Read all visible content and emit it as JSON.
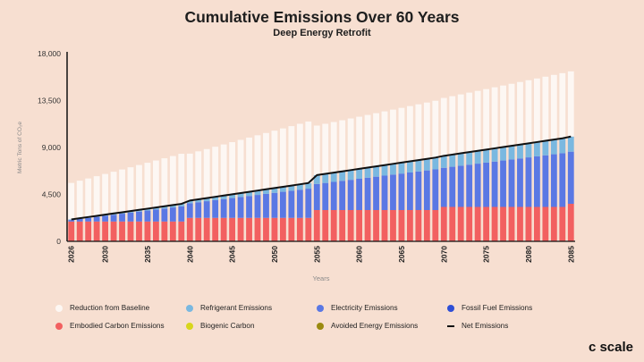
{
  "header": {
    "title": "Cumulative Emissions Over 60 Years",
    "subtitle": "Deep Energy Retrofit"
  },
  "brand": {
    "logo_text": "c scale"
  },
  "chart_data": {
    "type": "bar",
    "stacked": true,
    "title": "Cumulative Emissions Over 60 Years",
    "subtitle": "Deep Energy Retrofit",
    "xlabel": "Years",
    "ylabel": "Metric Tons of CO₂e",
    "ylim": [
      0,
      18000
    ],
    "yticks": [
      0,
      4500,
      9000,
      13500,
      18000
    ],
    "ytick_labels": [
      "0",
      "4,500",
      "9,000",
      "13,500",
      "18,000"
    ],
    "xtick_labels": [
      "2026",
      "2030",
      "2035",
      "2040",
      "2045",
      "2050",
      "2055",
      "2060",
      "2065",
      "2070",
      "2075",
      "2080",
      "2085"
    ],
    "categories": [
      2026,
      2027,
      2028,
      2029,
      2030,
      2031,
      2032,
      2033,
      2034,
      2035,
      2036,
      2037,
      2038,
      2039,
      2040,
      2041,
      2042,
      2043,
      2044,
      2045,
      2046,
      2047,
      2048,
      2049,
      2050,
      2051,
      2052,
      2053,
      2054,
      2055,
      2056,
      2057,
      2058,
      2059,
      2060,
      2061,
      2062,
      2063,
      2064,
      2065,
      2066,
      2067,
      2068,
      2069,
      2070,
      2071,
      2072,
      2073,
      2074,
      2075,
      2076,
      2077,
      2078,
      2079,
      2080,
      2081,
      2082,
      2083,
      2084,
      2085
    ],
    "series": [
      {
        "name": "Embodied Carbon Emissions",
        "color": "#f26060",
        "values": [
          1900,
          1900,
          1900,
          1900,
          1900,
          1900,
          1900,
          1900,
          1900,
          1900,
          1900,
          1900,
          1900,
          1900,
          2250,
          2250,
          2250,
          2250,
          2250,
          2250,
          2250,
          2250,
          2250,
          2250,
          2250,
          2250,
          2250,
          2250,
          2250,
          3000,
          3000,
          3000,
          3000,
          3000,
          3000,
          3000,
          3000,
          3000,
          3000,
          3000,
          3000,
          3000,
          3000,
          3000,
          3300,
          3300,
          3300,
          3300,
          3300,
          3300,
          3300,
          3300,
          3300,
          3300,
          3300,
          3300,
          3300,
          3300,
          3300,
          3600
        ]
      },
      {
        "name": "Fossil Fuel Emissions",
        "color": "#2f4fd6",
        "values": [
          0,
          0,
          0,
          0,
          0,
          0,
          0,
          0,
          0,
          0,
          0,
          0,
          0,
          0,
          0,
          0,
          0,
          0,
          0,
          0,
          0,
          0,
          0,
          0,
          0,
          0,
          0,
          0,
          0,
          0,
          0,
          0,
          0,
          0,
          0,
          0,
          0,
          0,
          0,
          0,
          0,
          0,
          0,
          0,
          0,
          0,
          0,
          0,
          0,
          0,
          0,
          0,
          0,
          0,
          0,
          0,
          0,
          0,
          0,
          0
        ]
      },
      {
        "name": "Electricity Emissions",
        "color": "#5a78e4",
        "values": [
          150,
          250,
          350,
          450,
          550,
          650,
          750,
          850,
          950,
          1050,
          1150,
          1250,
          1350,
          1450,
          1400,
          1500,
          1600,
          1700,
          1800,
          1900,
          2000,
          2100,
          2200,
          2300,
          2400,
          2500,
          2600,
          2700,
          2800,
          2500,
          2600,
          2700,
          2800,
          2900,
          3000,
          3100,
          3200,
          3300,
          3400,
          3500,
          3600,
          3700,
          3800,
          3900,
          3750,
          3850,
          3950,
          4050,
          4150,
          4250,
          4350,
          4450,
          4550,
          4650,
          4750,
          4850,
          4950,
          5050,
          5150,
          5000
        ]
      },
      {
        "name": "Refrigerant Emissions",
        "color": "#7ab8e0",
        "values": [
          50,
          65,
          80,
          95,
          110,
          125,
          140,
          155,
          170,
          185,
          200,
          215,
          230,
          245,
          260,
          280,
          300,
          320,
          340,
          360,
          380,
          400,
          420,
          440,
          460,
          480,
          500,
          520,
          540,
          850,
          870,
          890,
          910,
          930,
          950,
          970,
          990,
          1010,
          1030,
          1050,
          1070,
          1090,
          1110,
          1130,
          1150,
          1170,
          1190,
          1210,
          1230,
          1250,
          1270,
          1290,
          1310,
          1330,
          1350,
          1370,
          1390,
          1410,
          1430,
          1450
        ]
      },
      {
        "name": "Reduction from Baseline",
        "color": "#fdf7f3",
        "values": [
          3500,
          3600,
          3700,
          3800,
          3900,
          4000,
          4100,
          4200,
          4300,
          4400,
          4500,
          4600,
          4700,
          4800,
          4500,
          4600,
          4700,
          4800,
          4900,
          5000,
          5100,
          5200,
          5300,
          5400,
          5500,
          5600,
          5700,
          5800,
          5900,
          4750,
          4800,
          4850,
          4900,
          4950,
          5000,
          5050,
          5100,
          5150,
          5200,
          5250,
          5300,
          5350,
          5400,
          5450,
          5550,
          5600,
          5650,
          5700,
          5750,
          5800,
          5850,
          5900,
          5950,
          6000,
          6050,
          6100,
          6150,
          6200,
          6250,
          6250
        ]
      }
    ],
    "net_emissions": {
      "name": "Net Emissions",
      "color": "#111111",
      "values": [
        2100,
        2215,
        2330,
        2445,
        2560,
        2675,
        2790,
        2905,
        3020,
        3135,
        3250,
        3365,
        3480,
        3595,
        3910,
        4030,
        4150,
        4270,
        4390,
        4510,
        4630,
        4750,
        4870,
        4990,
        5110,
        5230,
        5350,
        5470,
        5590,
        6350,
        6470,
        6590,
        6710,
        6830,
        6950,
        7070,
        7190,
        7310,
        7430,
        7550,
        7670,
        7790,
        7910,
        8030,
        8200,
        8320,
        8440,
        8560,
        8680,
        8800,
        8920,
        9040,
        9160,
        9280,
        9400,
        9520,
        9640,
        9760,
        9880,
        10050
      ]
    },
    "legend": {
      "position": "bottom",
      "items": [
        {
          "label": "Reduction from Baseline",
          "color": "#fdf7f3",
          "shape": "dot"
        },
        {
          "label": "Refrigerant Emissions",
          "color": "#7ab8e0",
          "shape": "dot"
        },
        {
          "label": "Electricity Emissions",
          "color": "#5a78e4",
          "shape": "dot"
        },
        {
          "label": "Fossil Fuel Emissions",
          "color": "#2f4fd6",
          "shape": "dot"
        },
        {
          "label": "Embodied Carbon Emissions",
          "color": "#f26060",
          "shape": "dot"
        },
        {
          "label": "Biogenic Carbon",
          "color": "#d8d61c",
          "shape": "dot"
        },
        {
          "label": "Avoided Energy Emissions",
          "color": "#9a8a10",
          "shape": "dot"
        },
        {
          "label": "Net Emissions",
          "color": "#111111",
          "shape": "line"
        }
      ]
    }
  }
}
